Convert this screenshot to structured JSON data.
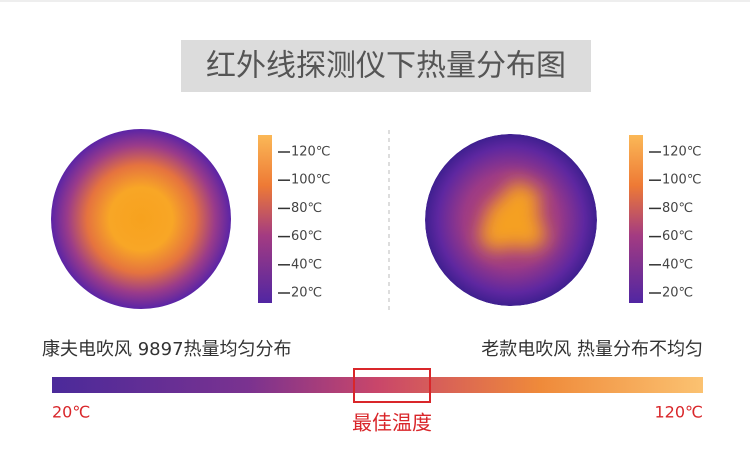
{
  "title": "红外线探测仪下热量分布图",
  "panels": [
    {
      "scale_labels": [
        "120℃",
        "100℃",
        "80℃",
        "60℃",
        "40℃",
        "20℃"
      ],
      "caption": "康夫电吹风 9897热量均匀分布"
    },
    {
      "scale_labels": [
        "120℃",
        "100℃",
        "80℃",
        "60℃",
        "40℃",
        "20℃"
      ],
      "caption": "老款电吹风 热量分布不均匀"
    }
  ],
  "gradient_bar": {
    "min_label": "20℃",
    "max_label": "120℃",
    "highlight_label": "最佳温度"
  }
}
